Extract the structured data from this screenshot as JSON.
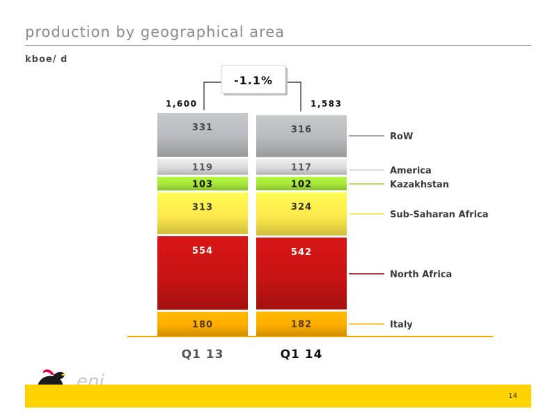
{
  "title": "production by geographical area",
  "unit": "kboe/ d",
  "page_number": "14",
  "logo_text": "eni",
  "colors": {
    "RoW": "#b8babd",
    "America": "#dcdcdc",
    "Kazakhstan": "#a6e63a",
    "Sub-Saharan Africa": "#ffe94d",
    "North Africa": "#c81414",
    "Italy": "#ffad00",
    "baseline": "#f5a300",
    "footer": "#ffd200"
  },
  "chart_data": {
    "type": "bar",
    "stacked": true,
    "categories": [
      "Q1 13",
      "Q1 14"
    ],
    "totals": [
      "1,600",
      "1,583"
    ],
    "change_label": "-1.1%",
    "series": [
      {
        "name": "Italy",
        "values": [
          180,
          182
        ],
        "labels": [
          "180",
          "182"
        ]
      },
      {
        "name": "North Africa",
        "values": [
          554,
          542
        ],
        "labels": [
          "554",
          "542"
        ]
      },
      {
        "name": "Sub-Saharan Africa",
        "values": [
          313,
          324
        ],
        "labels": [
          "313",
          "324"
        ]
      },
      {
        "name": "Kazakhstan",
        "values": [
          103,
          102
        ],
        "labels": [
          "103",
          "102"
        ]
      },
      {
        "name": "America",
        "values": [
          119,
          117
        ],
        "labels": [
          "119",
          "117"
        ]
      },
      {
        "name": "RoW",
        "values": [
          331,
          316
        ],
        "labels": [
          "331",
          "316"
        ]
      }
    ]
  }
}
